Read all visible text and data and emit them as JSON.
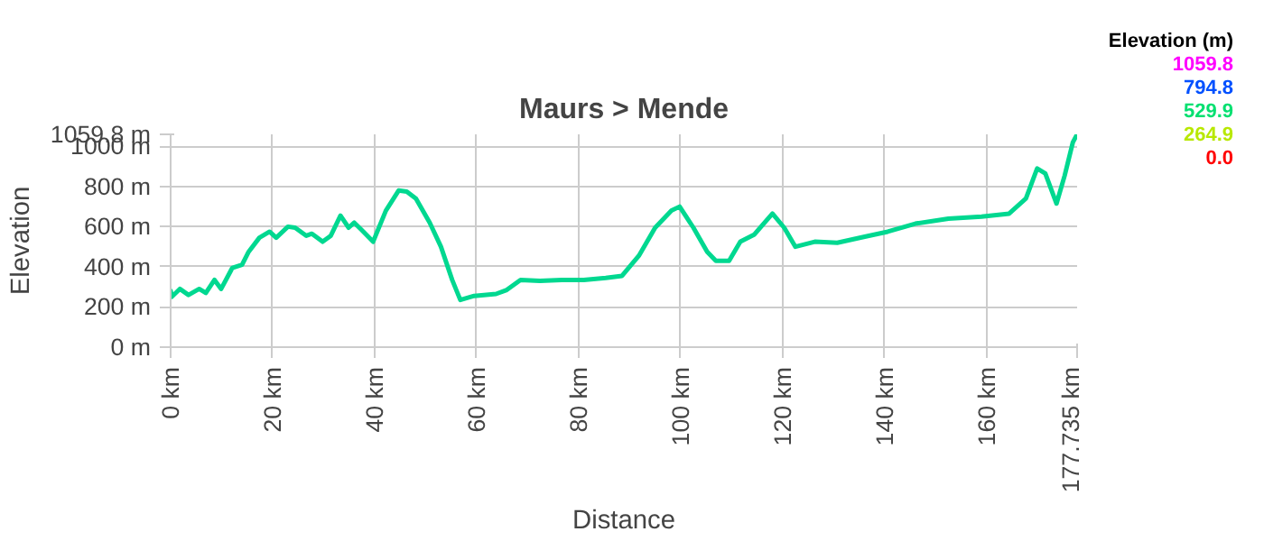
{
  "chart_data": {
    "type": "line",
    "title": "Maurs > Mende",
    "xlabel": "Distance",
    "ylabel": "Elevation",
    "annotations": [
      "Elevation (m)",
      "1059.8",
      "794.8",
      "529.9",
      "264.9",
      "0.0"
    ],
    "x": [
      0,
      0.2,
      1.8,
      3.5,
      5.6,
      6.9,
      8.6,
      9.9,
      12.1,
      14.0,
      15.3,
      17.4,
      19.4,
      20.7,
      23.0,
      24.4,
      26.6,
      27.7,
      29.8,
      31.4,
      33.3,
      34.9,
      36.0,
      37.4,
      39.7,
      42.2,
      44.7,
      46.3,
      48.1,
      50.8,
      53.0,
      55.2,
      56.8,
      59.5,
      63.8,
      65.9,
      68.6,
      72.4,
      76.7,
      81.0,
      85.3,
      88.5,
      91.8,
      95.0,
      98.2,
      99.8,
      102.5,
      105.2,
      106.9,
      109.5,
      111.7,
      114.4,
      118.0,
      120.3,
      122.5,
      126.3,
      130.7,
      136.1,
      140.6,
      146.0,
      152.5,
      159.0,
      164.4,
      167.7,
      169.9,
      171.5,
      173.7,
      175.3,
      176.9,
      177.735
    ],
    "values": [
      280,
      250,
      290,
      260,
      290,
      270,
      335,
      290,
      395,
      410,
      475,
      545,
      575,
      545,
      600,
      595,
      555,
      565,
      525,
      555,
      655,
      595,
      620,
      585,
      525,
      680,
      780,
      775,
      740,
      620,
      500,
      335,
      235,
      255,
      265,
      285,
      335,
      330,
      335,
      335,
      345,
      355,
      455,
      595,
      680,
      700,
      595,
      475,
      430,
      430,
      525,
      560,
      665,
      595,
      500,
      525,
      520,
      550,
      575,
      615,
      640,
      650,
      665,
      740,
      890,
      865,
      715,
      855,
      1020,
      1059.8
    ],
    "xlim": [
      0,
      177.735
    ],
    "xticks": [
      {
        "value": 0,
        "label": "0 km"
      },
      {
        "value": 20,
        "label": "20 km"
      },
      {
        "value": 40,
        "label": "40 km"
      },
      {
        "value": 60,
        "label": "60 km"
      },
      {
        "value": 80,
        "label": "80 km"
      },
      {
        "value": 100,
        "label": "100 km"
      },
      {
        "value": 120,
        "label": "120 km"
      },
      {
        "value": 140,
        "label": "140 km"
      },
      {
        "value": 160,
        "label": "160 km"
      },
      {
        "value": 177.735,
        "label": "177.735 km"
      }
    ],
    "ylim": [
      0,
      1059.8
    ],
    "yticks": [
      {
        "value": 0,
        "label": "0 m"
      },
      {
        "value": 200,
        "label": "200 m"
      },
      {
        "value": 400,
        "label": "400 m"
      },
      {
        "value": 600,
        "label": "600 m"
      },
      {
        "value": 800,
        "label": "800 m"
      },
      {
        "value": 1000,
        "label": "1000 m"
      },
      {
        "value": 1059.8,
        "label": "1059.8 m"
      }
    ],
    "grid": true,
    "line_style": "solid"
  }
}
